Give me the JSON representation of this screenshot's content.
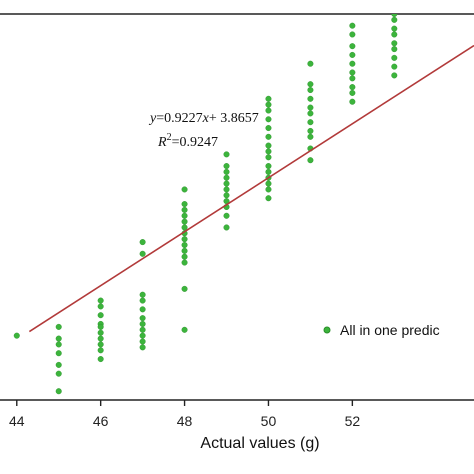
{
  "chart_data": {
    "type": "scatter",
    "xlabel": "Actual values (g)",
    "ylabel": "",
    "xlim": [
      43.6,
      54.9
    ],
    "ylim": [
      42.4,
      55.6
    ],
    "xticks": [
      44,
      46,
      48,
      50,
      52
    ],
    "xtick_labels": [
      "44",
      "46",
      "48",
      "50",
      "52"
    ],
    "grid": false,
    "legend": {
      "label": "All in one predic",
      "placement": "bottom-right"
    },
    "colors": {
      "points": "#3cb43c",
      "points_edge": "#2a8f2a",
      "fit_line": "#b23a3a",
      "axes": "#222222"
    },
    "annotation": {
      "equation": {
        "prefix": "y",
        "mid": "=0.9227",
        "var": "x",
        "suffix": "+ 3.8657"
      },
      "r2": {
        "label": "R",
        "sup": "2",
        "value": "=0.9247"
      }
    },
    "fit_line": {
      "slope": 0.9227,
      "intercept": 3.8657,
      "x_range": [
        44.3,
        54.9
      ]
    },
    "series": [
      {
        "name": "All in one predic",
        "points": [
          [
            44,
            44.6
          ],
          [
            45,
            44.9
          ],
          [
            45,
            44.5
          ],
          [
            45,
            44.3
          ],
          [
            45,
            44.0
          ],
          [
            45,
            43.6
          ],
          [
            45,
            43.3
          ],
          [
            45,
            42.7
          ],
          [
            46,
            45.8
          ],
          [
            46,
            45.6
          ],
          [
            46,
            45.3
          ],
          [
            46,
            45.0
          ],
          [
            46,
            44.9
          ],
          [
            46,
            44.7
          ],
          [
            46,
            44.5
          ],
          [
            46,
            44.3
          ],
          [
            46,
            44.1
          ],
          [
            46,
            43.8
          ],
          [
            47,
            47.8
          ],
          [
            47,
            47.4
          ],
          [
            47,
            46.0
          ],
          [
            47,
            45.8
          ],
          [
            47,
            45.5
          ],
          [
            47,
            45.2
          ],
          [
            47,
            45.0
          ],
          [
            47,
            44.8
          ],
          [
            47,
            44.6
          ],
          [
            47,
            44.4
          ],
          [
            47,
            44.2
          ],
          [
            48,
            49.6
          ],
          [
            48,
            49.1
          ],
          [
            48,
            48.9
          ],
          [
            48,
            48.7
          ],
          [
            48,
            48.5
          ],
          [
            48,
            48.3
          ],
          [
            48,
            48.1
          ],
          [
            48,
            47.9
          ],
          [
            48,
            47.7
          ],
          [
            48,
            47.5
          ],
          [
            48,
            47.3
          ],
          [
            48,
            47.1
          ],
          [
            48,
            46.2
          ],
          [
            48,
            44.8
          ],
          [
            49,
            50.8
          ],
          [
            49,
            50.4
          ],
          [
            49,
            50.2
          ],
          [
            49,
            50.0
          ],
          [
            49,
            49.8
          ],
          [
            49,
            49.6
          ],
          [
            49,
            49.4
          ],
          [
            49,
            49.2
          ],
          [
            49,
            49.0
          ],
          [
            49,
            48.7
          ],
          [
            49,
            48.3
          ],
          [
            50,
            52.7
          ],
          [
            50,
            52.5
          ],
          [
            50,
            52.3
          ],
          [
            50,
            52.0
          ],
          [
            50,
            51.7
          ],
          [
            50,
            51.4
          ],
          [
            50,
            51.1
          ],
          [
            50,
            50.9
          ],
          [
            50,
            50.7
          ],
          [
            50,
            50.4
          ],
          [
            50,
            50.2
          ],
          [
            50,
            50.0
          ],
          [
            50,
            49.8
          ],
          [
            50,
            49.6
          ],
          [
            50,
            49.3
          ],
          [
            51,
            53.9
          ],
          [
            51,
            53.2
          ],
          [
            51,
            53.0
          ],
          [
            51,
            52.7
          ],
          [
            51,
            52.4
          ],
          [
            51,
            52.2
          ],
          [
            51,
            51.9
          ],
          [
            51,
            51.6
          ],
          [
            51,
            51.4
          ],
          [
            51,
            51.0
          ],
          [
            51,
            50.6
          ],
          [
            52,
            55.2
          ],
          [
            52,
            54.9
          ],
          [
            52,
            54.5
          ],
          [
            52,
            54.2
          ],
          [
            52,
            53.9
          ],
          [
            52,
            53.6
          ],
          [
            52,
            53.4
          ],
          [
            52,
            53.1
          ],
          [
            52,
            52.9
          ],
          [
            52,
            52.6
          ],
          [
            53,
            56.2
          ],
          [
            53,
            55.9
          ],
          [
            53,
            55.6
          ],
          [
            53,
            55.4
          ],
          [
            53,
            55.1
          ],
          [
            53,
            54.9
          ],
          [
            53,
            54.6
          ],
          [
            53,
            54.4
          ],
          [
            53,
            54.1
          ],
          [
            53,
            53.8
          ],
          [
            53,
            53.5
          ]
        ]
      }
    ]
  }
}
